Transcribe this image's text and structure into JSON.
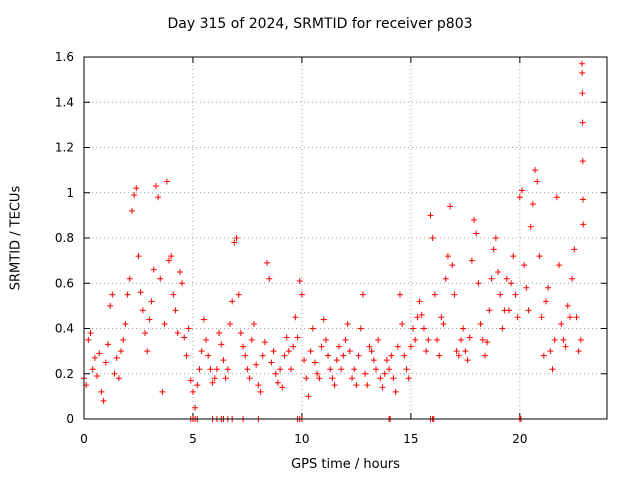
{
  "chart_data": {
    "type": "scatter",
    "title": "Day 315 of 2024, SRMTID for receiver p803",
    "xlabel": "GPS time / hours",
    "ylabel": "SRMTID / TECUs",
    "xlim": [
      0,
      24
    ],
    "ylim": [
      0,
      1.6
    ],
    "xticks": [
      0,
      5,
      10,
      15,
      20
    ],
    "yticks": [
      0,
      0.2,
      0.4,
      0.6,
      0.8,
      1,
      1.2,
      1.4,
      1.6
    ],
    "grid": true,
    "marker": "+",
    "color": "#ff0000",
    "series": [
      {
        "name": "SRMTID",
        "points": [
          [
            0.0,
            0.18
          ],
          [
            0.1,
            0.15
          ],
          [
            0.2,
            0.35
          ],
          [
            0.3,
            0.38
          ],
          [
            0.4,
            0.22
          ],
          [
            0.5,
            0.27
          ],
          [
            0.6,
            0.19
          ],
          [
            0.7,
            0.29
          ],
          [
            0.8,
            0.12
          ],
          [
            0.9,
            0.08
          ],
          [
            1.0,
            0.25
          ],
          [
            1.1,
            0.33
          ],
          [
            1.2,
            0.5
          ],
          [
            1.3,
            0.55
          ],
          [
            1.4,
            0.2
          ],
          [
            1.5,
            0.27
          ],
          [
            1.6,
            0.18
          ],
          [
            1.7,
            0.3
          ],
          [
            1.8,
            0.35
          ],
          [
            1.9,
            0.42
          ],
          [
            2.0,
            0.55
          ],
          [
            2.1,
            0.62
          ],
          [
            2.2,
            0.92
          ],
          [
            2.3,
            0.99
          ],
          [
            2.4,
            1.02
          ],
          [
            2.5,
            0.72
          ],
          [
            2.6,
            0.56
          ],
          [
            2.7,
            0.48
          ],
          [
            2.8,
            0.38
          ],
          [
            2.9,
            0.3
          ],
          [
            3.0,
            0.44
          ],
          [
            3.1,
            0.52
          ],
          [
            3.2,
            0.66
          ],
          [
            3.3,
            1.03
          ],
          [
            3.4,
            0.98
          ],
          [
            3.5,
            0.62
          ],
          [
            3.6,
            0.12
          ],
          [
            3.7,
            0.42
          ],
          [
            3.8,
            1.05
          ],
          [
            3.9,
            0.7
          ],
          [
            4.0,
            0.72
          ],
          [
            4.1,
            0.55
          ],
          [
            4.2,
            0.48
          ],
          [
            4.3,
            0.38
          ],
          [
            4.4,
            0.65
          ],
          [
            4.5,
            0.6
          ],
          [
            4.6,
            0.36
          ],
          [
            4.7,
            0.28
          ],
          [
            4.8,
            0.4
          ],
          [
            4.9,
            0.17
          ],
          [
            5.0,
            0.12
          ],
          [
            5.1,
            0.05
          ],
          [
            5.2,
            0.15
          ],
          [
            5.3,
            0.22
          ],
          [
            5.4,
            0.3
          ],
          [
            5.5,
            0.44
          ],
          [
            5.6,
            0.35
          ],
          [
            5.7,
            0.28
          ],
          [
            5.8,
            0.22
          ],
          [
            5.9,
            0.16
          ],
          [
            6.0,
            0.18
          ],
          [
            6.1,
            0.22
          ],
          [
            6.2,
            0.38
          ],
          [
            6.3,
            0.33
          ],
          [
            6.4,
            0.26
          ],
          [
            6.5,
            0.18
          ],
          [
            6.6,
            0.22
          ],
          [
            6.7,
            0.42
          ],
          [
            6.8,
            0.52
          ],
          [
            6.9,
            0.78
          ],
          [
            7.0,
            0.8
          ],
          [
            7.1,
            0.55
          ],
          [
            7.2,
            0.38
          ],
          [
            7.3,
            0.32
          ],
          [
            7.4,
            0.28
          ],
          [
            7.5,
            0.22
          ],
          [
            7.6,
            0.18
          ],
          [
            7.7,
            0.35
          ],
          [
            7.8,
            0.42
          ],
          [
            7.9,
            0.24
          ],
          [
            8.0,
            0.15
          ],
          [
            8.1,
            0.12
          ],
          [
            8.2,
            0.28
          ],
          [
            8.3,
            0.34
          ],
          [
            8.4,
            0.69
          ],
          [
            8.5,
            0.62
          ],
          [
            8.6,
            0.25
          ],
          [
            8.7,
            0.3
          ],
          [
            8.8,
            0.2
          ],
          [
            8.9,
            0.16
          ],
          [
            9.0,
            0.22
          ],
          [
            9.1,
            0.14
          ],
          [
            9.2,
            0.28
          ],
          [
            9.3,
            0.36
          ],
          [
            9.4,
            0.3
          ],
          [
            9.5,
            0.22
          ],
          [
            9.6,
            0.32
          ],
          [
            9.7,
            0.45
          ],
          [
            9.8,
            0.36
          ],
          [
            9.9,
            0.61
          ],
          [
            10.0,
            0.55
          ],
          [
            10.1,
            0.26
          ],
          [
            10.2,
            0.18
          ],
          [
            10.3,
            0.1
          ],
          [
            10.4,
            0.3
          ],
          [
            10.5,
            0.4
          ],
          [
            10.6,
            0.25
          ],
          [
            10.7,
            0.2
          ],
          [
            10.8,
            0.18
          ],
          [
            10.9,
            0.32
          ],
          [
            11.0,
            0.44
          ],
          [
            11.1,
            0.35
          ],
          [
            11.2,
            0.28
          ],
          [
            11.3,
            0.22
          ],
          [
            11.4,
            0.18
          ],
          [
            11.5,
            0.15
          ],
          [
            11.6,
            0.26
          ],
          [
            11.7,
            0.32
          ],
          [
            11.8,
            0.22
          ],
          [
            11.9,
            0.28
          ],
          [
            12.0,
            0.35
          ],
          [
            12.1,
            0.42
          ],
          [
            12.2,
            0.3
          ],
          [
            12.3,
            0.18
          ],
          [
            12.4,
            0.22
          ],
          [
            12.5,
            0.15
          ],
          [
            12.6,
            0.28
          ],
          [
            12.7,
            0.4
          ],
          [
            12.8,
            0.55
          ],
          [
            12.9,
            0.2
          ],
          [
            13.0,
            0.15
          ],
          [
            13.1,
            0.32
          ],
          [
            13.2,
            0.3
          ],
          [
            13.3,
            0.26
          ],
          [
            13.4,
            0.22
          ],
          [
            13.5,
            0.35
          ],
          [
            13.6,
            0.18
          ],
          [
            13.7,
            0.14
          ],
          [
            13.8,
            0.2
          ],
          [
            13.9,
            0.26
          ],
          [
            14.0,
            0.22
          ],
          [
            14.1,
            0.28
          ],
          [
            14.2,
            0.18
          ],
          [
            14.3,
            0.12
          ],
          [
            14.4,
            0.32
          ],
          [
            14.5,
            0.55
          ],
          [
            14.6,
            0.42
          ],
          [
            14.7,
            0.28
          ],
          [
            14.8,
            0.22
          ],
          [
            14.9,
            0.18
          ],
          [
            15.0,
            0.32
          ],
          [
            15.1,
            0.4
          ],
          [
            15.2,
            0.35
          ],
          [
            15.3,
            0.45
          ],
          [
            15.4,
            0.52
          ],
          [
            15.5,
            0.46
          ],
          [
            15.6,
            0.4
          ],
          [
            15.7,
            0.3
          ],
          [
            15.8,
            0.35
          ],
          [
            15.9,
            0.9
          ],
          [
            16.0,
            0.8
          ],
          [
            16.1,
            0.55
          ],
          [
            16.2,
            0.35
          ],
          [
            16.3,
            0.28
          ],
          [
            16.4,
            0.45
          ],
          [
            16.5,
            0.42
          ],
          [
            16.6,
            0.62
          ],
          [
            16.7,
            0.72
          ],
          [
            16.8,
            0.94
          ],
          [
            16.9,
            0.68
          ],
          [
            17.0,
            0.55
          ],
          [
            17.1,
            0.3
          ],
          [
            17.2,
            0.28
          ],
          [
            17.3,
            0.35
          ],
          [
            17.4,
            0.4
          ],
          [
            17.5,
            0.3
          ],
          [
            17.6,
            0.26
          ],
          [
            17.7,
            0.36
          ],
          [
            17.8,
            0.7
          ],
          [
            17.9,
            0.88
          ],
          [
            18.0,
            0.82
          ],
          [
            18.1,
            0.6
          ],
          [
            18.2,
            0.42
          ],
          [
            18.3,
            0.35
          ],
          [
            18.4,
            0.28
          ],
          [
            18.5,
            0.34
          ],
          [
            18.6,
            0.48
          ],
          [
            18.7,
            0.62
          ],
          [
            18.8,
            0.75
          ],
          [
            18.9,
            0.8
          ],
          [
            19.0,
            0.65
          ],
          [
            19.1,
            0.55
          ],
          [
            19.2,
            0.4
          ],
          [
            19.3,
            0.48
          ],
          [
            19.4,
            0.62
          ],
          [
            19.5,
            0.48
          ],
          [
            19.6,
            0.6
          ],
          [
            19.7,
            0.72
          ],
          [
            19.8,
            0.55
          ],
          [
            19.9,
            0.45
          ],
          [
            20.0,
            0.98
          ],
          [
            20.1,
            1.01
          ],
          [
            20.2,
            0.68
          ],
          [
            20.3,
            0.58
          ],
          [
            20.4,
            0.48
          ],
          [
            20.5,
            0.85
          ],
          [
            20.6,
            0.95
          ],
          [
            20.7,
            1.1
          ],
          [
            20.8,
            1.05
          ],
          [
            20.9,
            0.72
          ],
          [
            21.0,
            0.45
          ],
          [
            21.1,
            0.28
          ],
          [
            21.2,
            0.52
          ],
          [
            21.3,
            0.58
          ],
          [
            21.4,
            0.3
          ],
          [
            21.5,
            0.22
          ],
          [
            21.6,
            0.35
          ],
          [
            21.7,
            0.98
          ],
          [
            21.8,
            0.68
          ],
          [
            21.9,
            0.42
          ],
          [
            22.0,
            0.35
          ],
          [
            22.1,
            0.32
          ],
          [
            22.2,
            0.5
          ],
          [
            22.3,
            0.45
          ],
          [
            22.4,
            0.62
          ],
          [
            22.5,
            0.75
          ],
          [
            22.6,
            0.45
          ],
          [
            22.7,
            0.3
          ],
          [
            22.8,
            0.35
          ],
          [
            22.85,
            1.57
          ],
          [
            22.86,
            1.53
          ],
          [
            22.87,
            1.44
          ],
          [
            22.88,
            1.31
          ],
          [
            22.89,
            1.14
          ],
          [
            22.9,
            0.97
          ],
          [
            22.91,
            0.86
          ]
        ],
        "flagged_zero_hours": [
          4.9,
          5.0,
          5.1,
          5.2,
          5.9,
          6.1,
          6.3,
          6.4,
          6.6,
          6.8,
          7.3,
          8.0,
          9.8,
          9.9,
          10.0,
          14.0,
          14.05,
          15.9,
          16.0,
          16.05,
          20.0,
          20.05
        ]
      }
    ]
  }
}
